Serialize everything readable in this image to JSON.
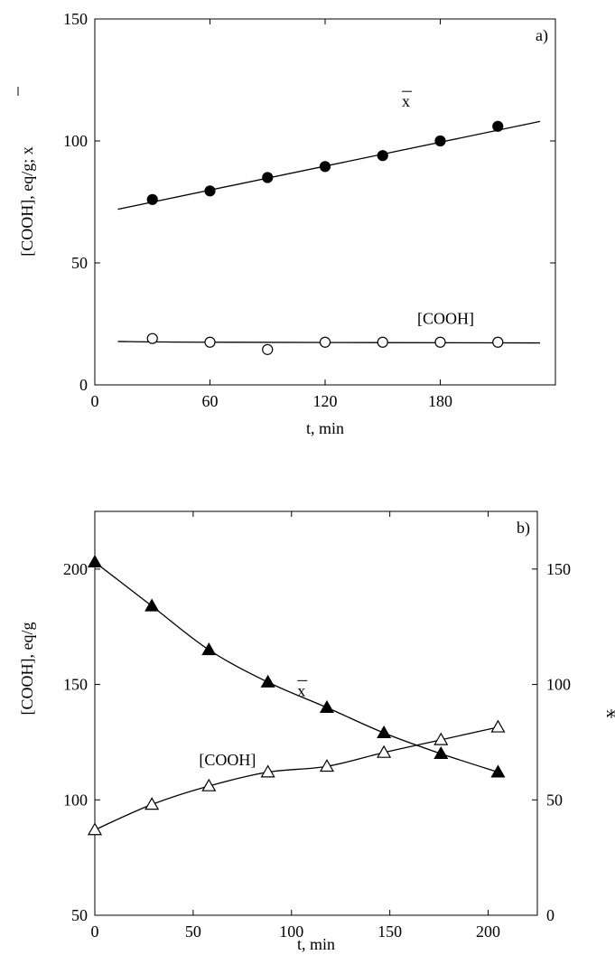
{
  "chart_data": [
    {
      "panel": "a)",
      "type": "scatter",
      "xlabel": "t, min",
      "ylabel": "[COOH], eq/g; x",
      "xlim": [
        0,
        240
      ],
      "ylim": [
        0,
        150
      ],
      "xticks": [
        0,
        60,
        120,
        180
      ],
      "yticks": [
        0,
        50,
        100,
        150
      ],
      "grid": false,
      "series": [
        {
          "name": "x",
          "marker": "filled-circle",
          "x": [
            30,
            60,
            90,
            120,
            150,
            180,
            210
          ],
          "y": [
            76,
            79.5,
            85,
            89.5,
            94,
            100,
            106
          ],
          "fit": {
            "x": [
              12,
              232
            ],
            "y": [
              72,
              108
            ]
          }
        },
        {
          "name": "[COOH]",
          "marker": "open-circle",
          "x": [
            30,
            60,
            90,
            120,
            150,
            180,
            210
          ],
          "y": [
            19,
            17.5,
            14.5,
            17.5,
            17.5,
            17.5,
            17.5
          ],
          "fit": {
            "x": [
              12,
              60,
              232
            ],
            "y": [
              17.8,
              17.5,
              17.2
            ]
          }
        }
      ],
      "annotations": [
        {
          "text": "x",
          "overline": true,
          "x": 160,
          "y": 114
        },
        {
          "text": "[COOH]",
          "x": 168,
          "y": 25
        }
      ]
    },
    {
      "panel": "b)",
      "type": "line",
      "xlabel": "t, min",
      "ylabel": "[COOH], eq/g",
      "y2label": "x",
      "xlim": [
        0,
        225
      ],
      "ylim": [
        50,
        225
      ],
      "y2lim": [
        0,
        175
      ],
      "xticks": [
        0,
        50,
        100,
        150,
        200
      ],
      "yticks": [
        50,
        100,
        150,
        200
      ],
      "y2ticks": [
        0,
        50,
        100,
        150
      ],
      "grid": false,
      "series": [
        {
          "name": "x",
          "axis": "right",
          "marker": "filled-triangle",
          "x": [
            0,
            29,
            58,
            88,
            118,
            147,
            176,
            205
          ],
          "y": [
            153,
            134,
            115,
            101,
            90,
            79,
            70,
            62
          ]
        },
        {
          "name": "[COOH]",
          "axis": "left",
          "marker": "open-triangle",
          "x": [
            0,
            29,
            58,
            88,
            118,
            147,
            176,
            205
          ],
          "y": [
            87,
            98,
            106,
            112,
            114.5,
            120.5,
            126,
            131.5
          ]
        }
      ],
      "annotations": [
        {
          "text": "x",
          "overline": true,
          "x": 103,
          "y": 145
        },
        {
          "text": "[COOH]",
          "x": 53,
          "y": 115
        }
      ]
    }
  ]
}
